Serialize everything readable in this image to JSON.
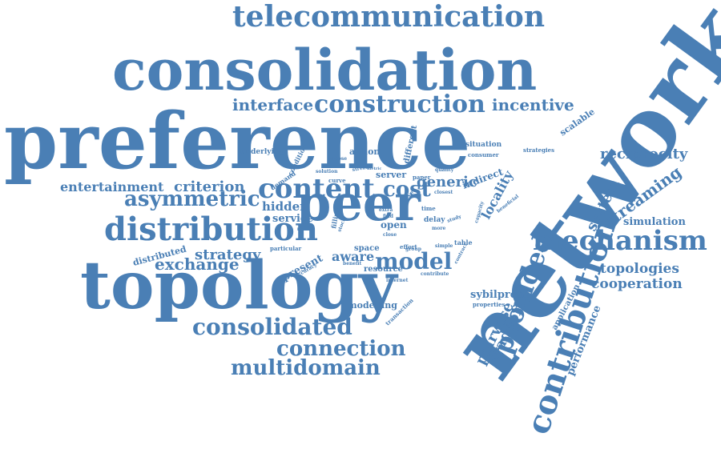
{
  "palette": {
    "word_color": "#4a7fb5",
    "background": "#ffffff"
  },
  "words": [
    {
      "text": "network"
    },
    {
      "text": "preference"
    },
    {
      "text": "consolidation"
    },
    {
      "text": "topology"
    },
    {
      "text": "peer"
    },
    {
      "text": "telecommunication"
    },
    {
      "text": "distribution"
    },
    {
      "text": "mechanism"
    },
    {
      "text": "contribution"
    },
    {
      "text": "content"
    },
    {
      "text": "construction"
    },
    {
      "text": "consolidated"
    },
    {
      "text": "connection"
    },
    {
      "text": "multidomain"
    },
    {
      "text": "asymmetric"
    },
    {
      "text": "provided"
    },
    {
      "text": "model"
    },
    {
      "text": "cost"
    },
    {
      "text": "strategy"
    },
    {
      "text": "exchange"
    },
    {
      "text": "interface"
    },
    {
      "text": "incentive"
    },
    {
      "text": "reciprocity"
    },
    {
      "text": "streaming"
    },
    {
      "text": "system"
    },
    {
      "text": "entertainment"
    },
    {
      "text": "criterion"
    },
    {
      "text": "cooperation"
    },
    {
      "text": "topologies"
    },
    {
      "text": "pairwise"
    },
    {
      "text": "tradeoff"
    },
    {
      "text": "locality"
    },
    {
      "text": "generic"
    },
    {
      "text": "aware"
    },
    {
      "text": "hidden"
    },
    {
      "text": "service"
    },
    {
      "text": "simulation"
    },
    {
      "text": "sybilproof"
    },
    {
      "text": "modelling"
    },
    {
      "text": "distributed"
    },
    {
      "text": "present"
    },
    {
      "text": "performance"
    },
    {
      "text": "scalable"
    },
    {
      "text": "application"
    },
    {
      "text": "action"
    },
    {
      "text": "server"
    },
    {
      "text": "open"
    },
    {
      "text": "space"
    },
    {
      "text": "resource"
    },
    {
      "text": "indirect"
    },
    {
      "text": "underlying"
    },
    {
      "text": "demand"
    },
    {
      "text": "condition"
    },
    {
      "text": "different"
    },
    {
      "text": "situation"
    },
    {
      "text": "consumer"
    },
    {
      "text": "strategies"
    },
    {
      "text": "paper"
    },
    {
      "text": "curve"
    },
    {
      "text": "solution"
    },
    {
      "text": "particular"
    },
    {
      "text": "accuracy"
    },
    {
      "text": "benefit"
    },
    {
      "text": "effort"
    },
    {
      "text": "delay"
    },
    {
      "text": "table"
    },
    {
      "text": "contribute"
    },
    {
      "text": "internet"
    },
    {
      "text": "properties"
    },
    {
      "text": "transaction"
    },
    {
      "text": "filling"
    },
    {
      "text": "live"
    },
    {
      "text": "time"
    },
    {
      "text": "closest"
    },
    {
      "text": "beneficial"
    },
    {
      "text": "capacity"
    },
    {
      "text": "study"
    },
    {
      "text": "more"
    },
    {
      "text": "group"
    },
    {
      "text": "simple"
    },
    {
      "text": "contract"
    },
    {
      "text": "impose"
    },
    {
      "text": "stream"
    },
    {
      "text": "metric"
    },
    {
      "text": "quality"
    },
    {
      "text": "isps"
    },
    {
      "text": "extra"
    },
    {
      "text": "stock"
    },
    {
      "text": "close"
    },
    {
      "text": "find"
    }
  ]
}
